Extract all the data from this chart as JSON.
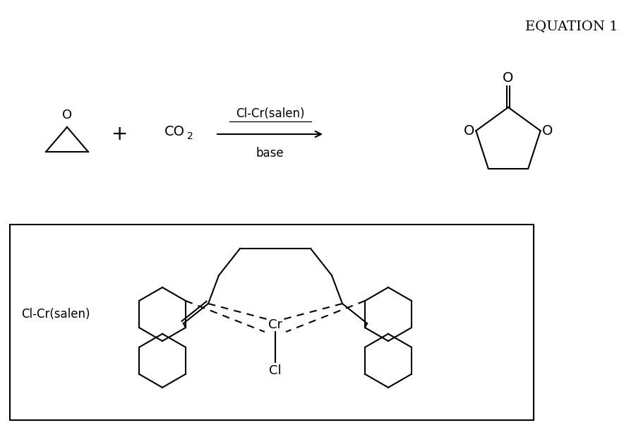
{
  "background_color": "#ffffff",
  "title": "EQUATION 1",
  "title_fontsize": 14,
  "figure_width": 9.01,
  "figure_height": 6.09,
  "dpi": 100,
  "text_color": "#000000",
  "line_color": "#000000",
  "line_width": 1.5,
  "co2_text": "CO",
  "co2_sub": "2",
  "plus_text": "+",
  "arrow_label_top": "Cl-Cr(salen)",
  "arrow_label_bot": "base",
  "cr_label": "Cr",
  "cl_label": "Cl",
  "box_label": "Cl-Cr(salen)",
  "o_label": "O"
}
